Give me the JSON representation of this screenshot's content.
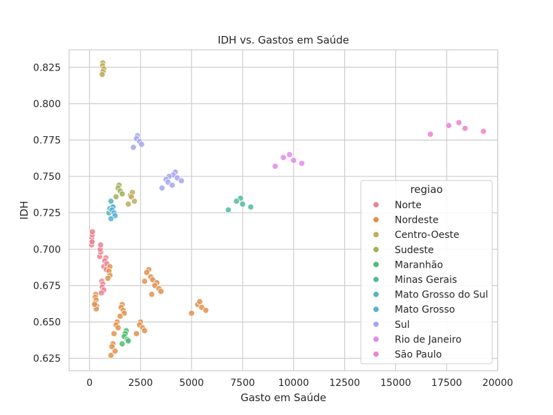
{
  "chart_data": {
    "type": "scatter",
    "title": "IDH vs. Gastos em Saúde",
    "xlabel": "Gasto em Saúde",
    "ylabel": "IDH",
    "xlim": [
      -1000,
      20000
    ],
    "ylim": [
      0.6165,
      0.837
    ],
    "x_ticks": [
      0,
      2500,
      5000,
      7500,
      10000,
      12500,
      15000,
      17500,
      20000
    ],
    "y_ticks": [
      0.625,
      0.65,
      0.675,
      0.7,
      0.725,
      0.75,
      0.775,
      0.8,
      0.825
    ],
    "grid": true,
    "legend_title": "regiao",
    "legend_position": "lower-right",
    "series": [
      {
        "name": "Norte",
        "color": "#ea8490",
        "points": [
          [
            100,
            0.703
          ],
          [
            120,
            0.706
          ],
          [
            110,
            0.708
          ],
          [
            130,
            0.71
          ],
          [
            140,
            0.712
          ],
          [
            120,
            0.705
          ],
          [
            500,
            0.695
          ],
          [
            550,
            0.698
          ],
          [
            520,
            0.7
          ],
          [
            540,
            0.703
          ],
          [
            800,
            0.694
          ],
          [
            750,
            0.692
          ],
          [
            700,
            0.688
          ],
          [
            850,
            0.69
          ],
          [
            820,
            0.686
          ],
          [
            600,
            0.678
          ],
          [
            650,
            0.676
          ],
          [
            620,
            0.674
          ],
          [
            700,
            0.672
          ],
          [
            580,
            0.67
          ]
        ]
      },
      {
        "name": "Nordeste",
        "color": "#e0924f",
        "points": [
          [
            300,
            0.669
          ],
          [
            280,
            0.667
          ],
          [
            320,
            0.665
          ],
          [
            260,
            0.663
          ],
          [
            350,
            0.661
          ],
          [
            330,
            0.659
          ],
          [
            250,
            0.662
          ],
          [
            1000,
            0.688
          ],
          [
            950,
            0.685
          ],
          [
            1000,
            0.682
          ],
          [
            900,
            0.68
          ],
          [
            2900,
            0.686
          ],
          [
            2800,
            0.684
          ],
          [
            3000,
            0.681
          ],
          [
            3100,
            0.679
          ],
          [
            2700,
            0.678
          ],
          [
            3300,
            0.677
          ],
          [
            3200,
            0.675
          ],
          [
            3400,
            0.673
          ],
          [
            3500,
            0.671
          ],
          [
            3050,
            0.669
          ],
          [
            1600,
            0.662
          ],
          [
            1550,
            0.66
          ],
          [
            1650,
            0.658
          ],
          [
            1700,
            0.656
          ],
          [
            1500,
            0.654
          ],
          [
            1350,
            0.65
          ],
          [
            1300,
            0.648
          ],
          [
            1400,
            0.646
          ],
          [
            1200,
            0.642
          ],
          [
            1150,
            0.635
          ],
          [
            1100,
            0.633
          ],
          [
            1250,
            0.63
          ],
          [
            1050,
            0.627
          ],
          [
            2500,
            0.65
          ],
          [
            2450,
            0.648
          ],
          [
            2600,
            0.646
          ],
          [
            2700,
            0.644
          ],
          [
            2300,
            0.642
          ],
          [
            5300,
            0.662
          ],
          [
            5400,
            0.664
          ],
          [
            5500,
            0.66
          ],
          [
            5700,
            0.658
          ],
          [
            5000,
            0.656
          ]
        ]
      },
      {
        "name": "Centro-Oeste",
        "color": "#c0ac5d",
        "points": [
          [
            650,
            0.828
          ],
          [
            640,
            0.826
          ],
          [
            700,
            0.824
          ],
          [
            660,
            0.822
          ],
          [
            620,
            0.82
          ],
          [
            2000,
            0.737
          ],
          [
            2100,
            0.739
          ],
          [
            2050,
            0.736
          ],
          [
            2200,
            0.733
          ],
          [
            1900,
            0.731
          ]
        ]
      },
      {
        "name": "Sudeste",
        "color": "#a3b058",
        "points": [
          [
            1450,
            0.744
          ],
          [
            1400,
            0.742
          ],
          [
            1500,
            0.74
          ],
          [
            1600,
            0.738
          ],
          [
            1300,
            0.736
          ]
        ]
      },
      {
        "name": "Maranhão",
        "color": "#4dbd70",
        "points": [
          [
            1800,
            0.644
          ],
          [
            1750,
            0.642
          ],
          [
            1700,
            0.64
          ],
          [
            1850,
            0.638
          ],
          [
            1900,
            0.637
          ],
          [
            1600,
            0.635
          ]
        ]
      },
      {
        "name": "Minas Gerais",
        "color": "#52bb9a",
        "points": [
          [
            7400,
            0.735
          ],
          [
            7200,
            0.733
          ],
          [
            7500,
            0.731
          ],
          [
            7900,
            0.729
          ],
          [
            6800,
            0.727
          ]
        ]
      },
      {
        "name": "Mato Grosso do Sul",
        "color": "#55b6b3",
        "points": [
          [
            1050,
            0.733
          ],
          [
            1100,
            0.729
          ],
          [
            950,
            0.725
          ],
          [
            1000,
            0.728
          ]
        ]
      },
      {
        "name": "Mato Grosso",
        "color": "#57b1d6",
        "points": [
          [
            1150,
            0.729
          ],
          [
            1100,
            0.727
          ],
          [
            1200,
            0.725
          ],
          [
            1250,
            0.723
          ],
          [
            1050,
            0.721
          ]
        ]
      },
      {
        "name": "Sul",
        "color": "#a4a6f0",
        "points": [
          [
            2350,
            0.778
          ],
          [
            2300,
            0.776
          ],
          [
            2450,
            0.774
          ],
          [
            2550,
            0.772
          ],
          [
            2150,
            0.77
          ],
          [
            4200,
            0.753
          ],
          [
            4100,
            0.751
          ],
          [
            3900,
            0.75
          ],
          [
            4300,
            0.749
          ],
          [
            3750,
            0.748
          ],
          [
            4500,
            0.747
          ],
          [
            3850,
            0.746
          ],
          [
            4050,
            0.744
          ],
          [
            3550,
            0.742
          ]
        ]
      },
      {
        "name": "Rio de Janeiro",
        "color": "#e289ec",
        "points": [
          [
            9800,
            0.765
          ],
          [
            9500,
            0.763
          ],
          [
            10000,
            0.761
          ],
          [
            10400,
            0.759
          ],
          [
            9100,
            0.757
          ]
        ]
      },
      {
        "name": "São Paulo",
        "color": "#ec83cf",
        "points": [
          [
            18100,
            0.787
          ],
          [
            17600,
            0.785
          ],
          [
            18400,
            0.783
          ],
          [
            19300,
            0.781
          ],
          [
            16700,
            0.779
          ]
        ]
      }
    ]
  }
}
